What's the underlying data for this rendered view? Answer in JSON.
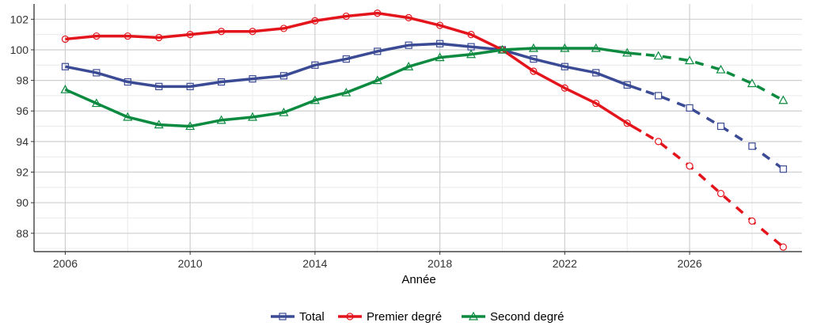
{
  "chart_data": {
    "type": "line",
    "title": "",
    "xlabel": "Année",
    "ylabel": "",
    "xlim": [
      2005.0,
      2029.6
    ],
    "ylim": [
      86.8,
      103.0
    ],
    "x_ticks": [
      "2006",
      "2010",
      "2014",
      "2018",
      "2022",
      "2026"
    ],
    "y_ticks": [
      "88",
      "90",
      "92",
      "94",
      "96",
      "98",
      "100",
      "102"
    ],
    "grid": true,
    "legend_position": "bottom",
    "projection_start": 2025,
    "series": [
      {
        "name": "Total",
        "color": "#3a4a94",
        "marker": "square",
        "x": [
          2006,
          2007,
          2008,
          2009,
          2010,
          2011,
          2012,
          2013,
          2014,
          2015,
          2016,
          2017,
          2018,
          2019,
          2020,
          2021,
          2022,
          2023,
          2024,
          2025,
          2026,
          2027,
          2028,
          2029
        ],
        "values": [
          98.9,
          98.5,
          97.9,
          97.6,
          97.6,
          97.9,
          98.1,
          98.3,
          99.0,
          99.4,
          99.9,
          100.3,
          100.4,
          100.2,
          100.0,
          99.4,
          98.9,
          98.5,
          97.7,
          97.0,
          96.2,
          95.0,
          93.7,
          92.2
        ]
      },
      {
        "name": "Premier degré",
        "color": "#e3141b",
        "marker": "circle",
        "x": [
          2006,
          2007,
          2008,
          2009,
          2010,
          2011,
          2012,
          2013,
          2014,
          2015,
          2016,
          2017,
          2018,
          2019,
          2020,
          2021,
          2022,
          2023,
          2024,
          2025,
          2026,
          2027,
          2028,
          2029
        ],
        "values": [
          100.7,
          100.9,
          100.9,
          100.8,
          101.0,
          101.2,
          101.2,
          101.4,
          101.9,
          102.2,
          102.4,
          102.1,
          101.6,
          101.0,
          100.0,
          98.6,
          97.5,
          96.5,
          95.2,
          94.0,
          92.4,
          90.6,
          88.8,
          87.1
        ]
      },
      {
        "name": "Second degré",
        "color": "#0b8a40",
        "marker": "triangle",
        "x": [
          2006,
          2007,
          2008,
          2009,
          2010,
          2011,
          2012,
          2013,
          2014,
          2015,
          2016,
          2017,
          2018,
          2019,
          2020,
          2021,
          2022,
          2023,
          2024,
          2025,
          2026,
          2027,
          2028,
          2029
        ],
        "values": [
          97.4,
          96.5,
          95.6,
          95.1,
          95.0,
          95.4,
          95.6,
          95.9,
          96.7,
          97.2,
          98.0,
          98.9,
          99.5,
          99.7,
          100.0,
          100.1,
          100.1,
          100.1,
          99.8,
          99.6,
          99.3,
          98.7,
          97.8,
          96.7
        ]
      }
    ]
  }
}
